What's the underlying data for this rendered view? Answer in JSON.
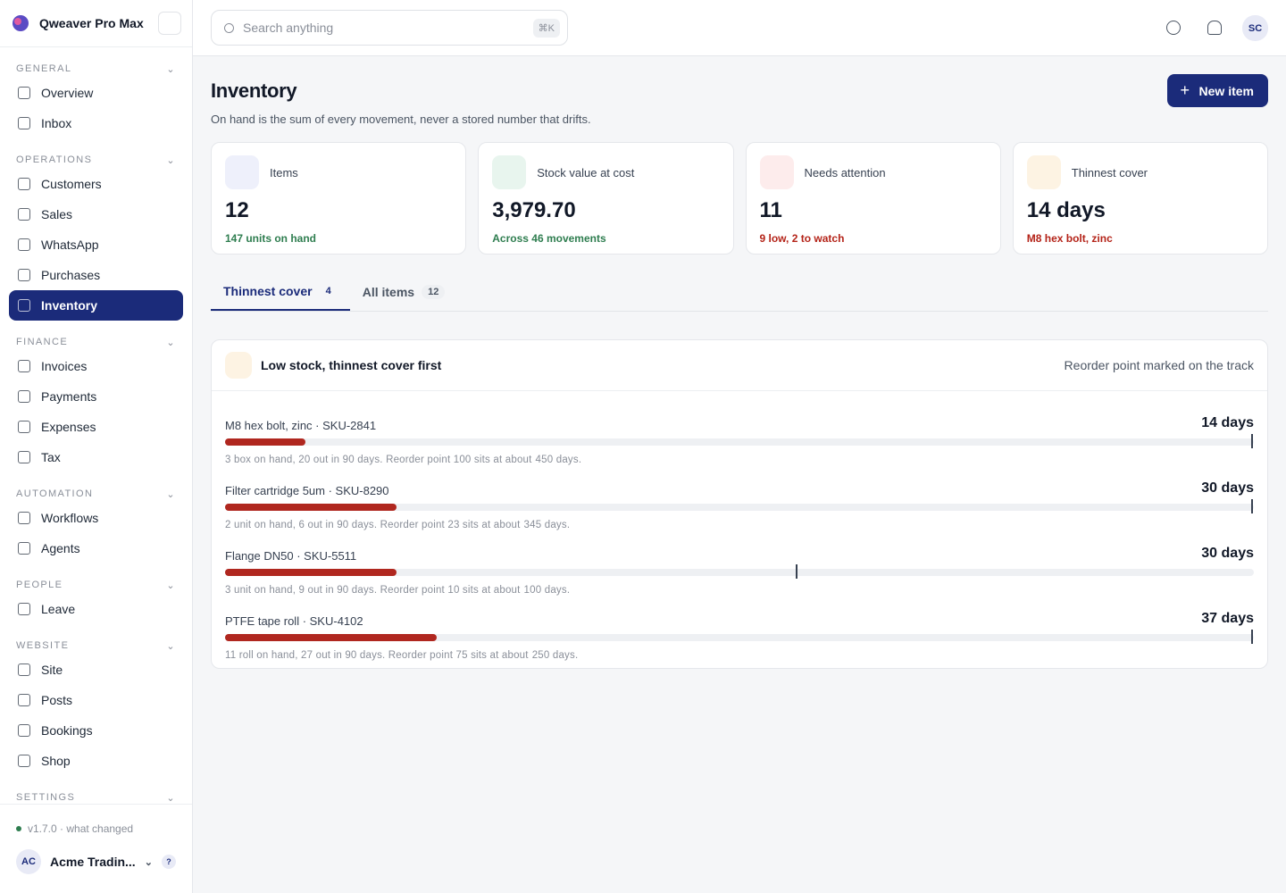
{
  "sidebar": {
    "brand": "Qweaver Pro Max",
    "sections": [
      {
        "title": "GENERAL",
        "items": [
          "Overview",
          "Inbox"
        ]
      },
      {
        "title": "OPERATIONS",
        "items": [
          "Customers",
          "Sales",
          "WhatsApp",
          "Purchases",
          "Inventory"
        ]
      },
      {
        "title": "FINANCE",
        "items": [
          "Invoices",
          "Payments",
          "Expenses",
          "Tax"
        ]
      },
      {
        "title": "AUTOMATION",
        "items": [
          "Workflows",
          "Agents"
        ]
      },
      {
        "title": "PEOPLE",
        "items": [
          "Leave"
        ]
      },
      {
        "title": "WEBSITE",
        "items": [
          "Site",
          "Posts",
          "Bookings",
          "Shop"
        ]
      },
      {
        "title": "SETTINGS",
        "items": []
      }
    ],
    "active": "Inventory",
    "version": "v1.7.0 · what changed",
    "account": {
      "initials": "AC",
      "name": "Acme Tradin...",
      "help": "?"
    }
  },
  "topbar": {
    "search_placeholder": "Search anything",
    "shortcut": "⌘K",
    "avatar": "SC"
  },
  "page": {
    "title": "Inventory",
    "subtitle": "On hand is the sum of every movement, never a stored number that drifts.",
    "new_button": "New item"
  },
  "stats": [
    {
      "label": "Items",
      "value": "12",
      "note": "147 units on hand"
    },
    {
      "label": "Stock value at cost",
      "value": "3,979.70",
      "note": "Across 46 movements"
    },
    {
      "label": "Needs attention",
      "value": "11",
      "note": "9 low, 2 to watch"
    },
    {
      "label": "Thinnest cover",
      "value": "14 days",
      "note": "M8 hex bolt, zinc"
    }
  ],
  "tabs": [
    {
      "label": "Thinnest cover",
      "count": "4"
    },
    {
      "label": "All items",
      "count": "12"
    }
  ],
  "panel": {
    "title": "Low stock, thinnest cover first",
    "hint": "Reorder point marked on the track",
    "rows": [
      {
        "name": "M8 hex bolt, zinc · SKU-2841",
        "cover": {
          "value": 14,
          "label": "14 days"
        },
        "detail": "3 box on hand, 20 out in 90 days. Reorder point 100 sits at about",
        "reorder_cover": {
          "value": 450,
          "label": "450 days."
        }
      },
      {
        "name": "Filter cartridge 5um · SKU-8290",
        "cover": {
          "value": 30,
          "label": "30 days"
        },
        "detail": "2 unit on hand, 6 out in 90 days. Reorder point 23 sits at about",
        "reorder_cover": {
          "value": 345,
          "label": "345 days."
        }
      },
      {
        "name": "Flange DN50 · SKU-5511",
        "cover": {
          "value": 30,
          "label": "30 days"
        },
        "detail": "3 unit on hand, 9 out in 90 days. Reorder point 10 sits at about",
        "reorder_cover": {
          "value": 100,
          "label": "100 days."
        }
      },
      {
        "name": "PTFE tape roll · SKU-4102",
        "cover": {
          "value": 37,
          "label": "37 days"
        },
        "detail": "11 roll on hand, 27 out in 90 days. Reorder point 75 sits at about",
        "reorder_cover": {
          "value": 250,
          "label": "250 days."
        }
      }
    ]
  }
}
